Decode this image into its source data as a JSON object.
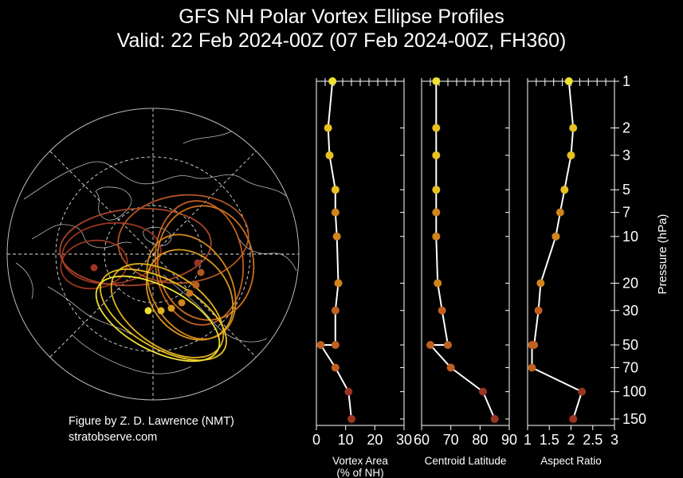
{
  "header": {
    "title": "GFS NH Polar Vortex Ellipse Profiles",
    "subtitle": "Valid: 22 Feb 2024-00Z  (07 Feb 2024-00Z, FH360)"
  },
  "credits": {
    "author": "Figure by Z. D. Lawrence (NMT)",
    "site": "stratobserve.com"
  },
  "colors": {
    "background": "#000000",
    "axes": "#ffffff",
    "low_level": "#9a3422",
    "mid_level": "#d0841c",
    "high_level": "#f0e030"
  },
  "chart_data": [
    {
      "type": "map",
      "projection": "north-polar-stereographic",
      "description_elements": [
        "coastlines",
        "graticule",
        "vortex ellipses"
      ],
      "ellipse_levels_hPa": [
        1,
        2,
        3,
        5,
        7,
        10,
        20,
        30,
        50,
        70,
        100,
        150
      ],
      "ellipse_color_scale": [
        "#f0e030",
        "#e8c020",
        "#d0841c",
        "#c06020",
        "#9a3422"
      ]
    },
    {
      "type": "line",
      "xlabel": "Vortex Area\n(% of NH)",
      "xlim": [
        0,
        30
      ],
      "xticks": [
        "0",
        "10",
        "20",
        "30"
      ],
      "ylabel": "",
      "ylog": true,
      "series": [
        {
          "levels": [
            1,
            2,
            3,
            5,
            7,
            10,
            20,
            30,
            50,
            50,
            70,
            100,
            150
          ],
          "values": [
            5.5,
            4.0,
            4.5,
            6.5,
            6.5,
            7.0,
            7.5,
            6.5,
            6.5,
            1.5,
            6.5,
            11.0,
            12.0
          ]
        }
      ]
    },
    {
      "type": "line",
      "xlabel": "Centroid Latitude",
      "xlim": [
        60,
        90
      ],
      "xticks": [
        "60",
        "70",
        "80",
        "90"
      ],
      "ylog": true,
      "series": [
        {
          "levels": [
            1,
            2,
            3,
            5,
            7,
            10,
            20,
            30,
            50,
            50,
            70,
            100,
            150
          ],
          "values": [
            65,
            65,
            65,
            65,
            65,
            65,
            65.5,
            67,
            69,
            63,
            70,
            81,
            85
          ]
        }
      ]
    },
    {
      "type": "line",
      "xlabel": "Aspect Ratio",
      "xlim": [
        1,
        3
      ],
      "xticks": [
        "1",
        "1.5",
        "2",
        "2.5",
        "3"
      ],
      "ylabel": "Pressure (hPa)",
      "ylabel_side": "right",
      "ylog": true,
      "ytick_labels": [
        "1",
        "2",
        "3",
        "5",
        "7",
        "10",
        "20",
        "30",
        "50",
        "70",
        "100",
        "150"
      ],
      "series": [
        {
          "levels": [
            1,
            2,
            3,
            5,
            7,
            10,
            20,
            30,
            50,
            50,
            70,
            100,
            150
          ],
          "values": [
            1.95,
            2.05,
            2.0,
            1.85,
            1.75,
            1.65,
            1.3,
            1.25,
            1.15,
            1.1,
            1.1,
            2.25,
            2.05
          ]
        }
      ]
    }
  ]
}
